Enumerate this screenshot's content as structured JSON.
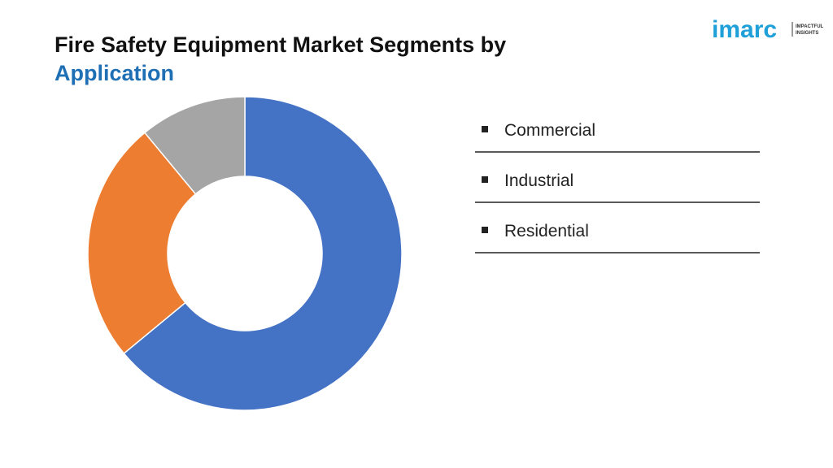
{
  "chart_data": {
    "type": "donut",
    "title": "Fire Safety Equipment Market Segments by",
    "title_highlight": "Application",
    "categories": [
      "Commercial",
      "Industrial",
      "Residential"
    ],
    "values": [
      64,
      25,
      11
    ],
    "colors": [
      "#4472c4",
      "#ed7d31",
      "#a5a5a5"
    ]
  },
  "logo": {
    "name": "imarc",
    "tagline": [
      "IMPACTFUL",
      "INSIGHTS"
    ]
  }
}
